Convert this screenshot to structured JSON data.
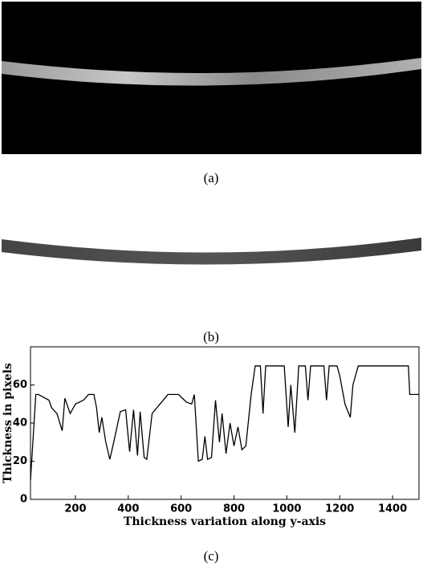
{
  "panel_labels": [
    "(a)",
    "(b)",
    "(c)"
  ],
  "chart_data": {
    "type": "line",
    "xlabel": "Thickness variation along y-axis",
    "ylabel": "Thickness in pixels",
    "xlim": [
      30,
      1500
    ],
    "xticks": [
      200,
      400,
      600,
      800,
      1000,
      1200,
      1400
    ],
    "ylim": [
      0,
      80
    ],
    "yticks": [
      0,
      20,
      40,
      60
    ],
    "x": [
      30,
      50,
      60,
      100,
      110,
      130,
      150,
      160,
      180,
      200,
      230,
      250,
      270,
      280,
      290,
      300,
      315,
      330,
      345,
      370,
      390,
      405,
      420,
      435,
      445,
      460,
      470,
      490,
      520,
      550,
      590,
      620,
      640,
      650,
      665,
      680,
      690,
      700,
      715,
      730,
      745,
      755,
      770,
      785,
      800,
      815,
      830,
      845,
      865,
      880,
      900,
      910,
      920,
      990,
      1005,
      1015,
      1030,
      1045,
      1070,
      1080,
      1090,
      1140,
      1150,
      1160,
      1190,
      1200,
      1220,
      1240,
      1250,
      1270,
      1460,
      1465,
      1500
    ],
    "series": [
      {
        "color": "#000000",
        "values": [
          10,
          55,
          55,
          52,
          48,
          45,
          36,
          53,
          45,
          50,
          52,
          55,
          55,
          48,
          35,
          43,
          30,
          21,
          30,
          46,
          47,
          25,
          47,
          23,
          46,
          22,
          21,
          45,
          50,
          55,
          55,
          51,
          50,
          55,
          20,
          21,
          33,
          21,
          22,
          52,
          30,
          45,
          24,
          40,
          28,
          38,
          26,
          28,
          55,
          70,
          70,
          45,
          70,
          70,
          38,
          60,
          35,
          70,
          70,
          52,
          70,
          70,
          52,
          70,
          70,
          65,
          50,
          43,
          60,
          70,
          70,
          55,
          55
        ]
      }
    ]
  }
}
